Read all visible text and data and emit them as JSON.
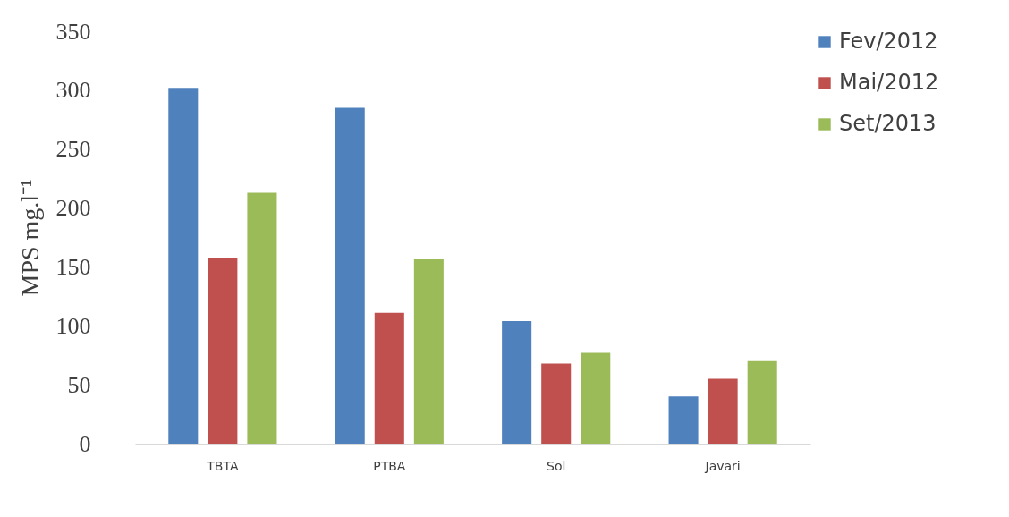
{
  "chart_data": {
    "type": "bar",
    "ylabel": "MPS mg.l⁻¹",
    "categories": [
      "TBTA",
      "PTBA",
      "Sol",
      "Javari"
    ],
    "series": [
      {
        "name": "Fev/2012",
        "color": "#4f81bd",
        "values": [
          302,
          285,
          104,
          40
        ]
      },
      {
        "name": "Mai/2012",
        "color": "#c0504d",
        "values": [
          158,
          111,
          68,
          55
        ]
      },
      {
        "name": "Set/2013",
        "color": "#9bbb59",
        "values": [
          213,
          157,
          77,
          70
        ]
      }
    ],
    "ylim": [
      0,
      350
    ],
    "yticks": [
      0,
      50,
      100,
      150,
      200,
      250,
      300,
      350
    ],
    "grid": false,
    "legend": "right"
  }
}
